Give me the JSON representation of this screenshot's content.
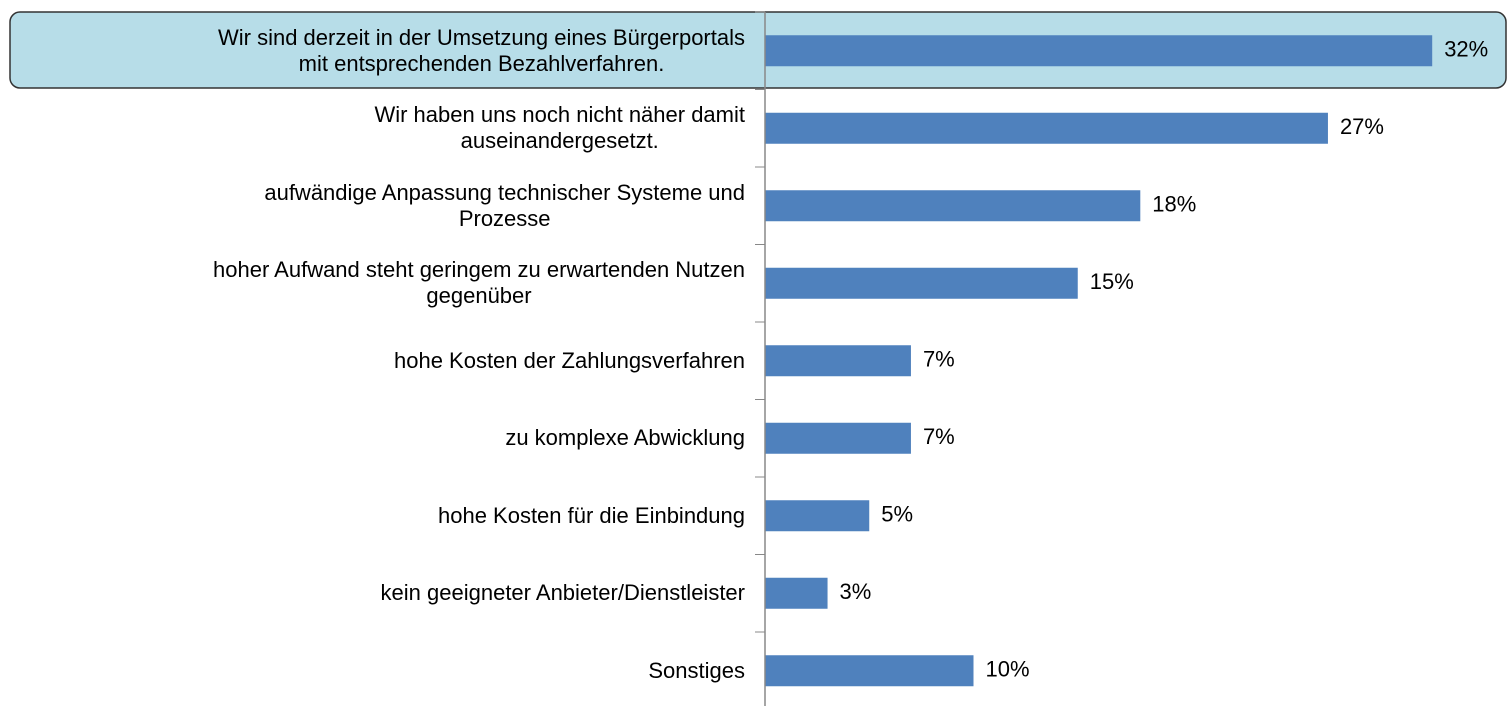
{
  "chart_data": {
    "type": "bar",
    "orientation": "horizontal",
    "color": "#4f81bd",
    "categories": [
      "Wir sind derzeit in der Umsetzung eines Bürgerportals\nmit entsprechenden Bezahlverfahren.",
      "Wir haben uns noch nicht näher damit\nauseinandergesetzt.",
      "aufwändige Anpassung technischer Systeme und\nProzesse",
      "hoher Aufwand steht geringem zu erwartenden Nutzen\ngegenüber",
      "hohe Kosten der Zahlungsverfahren",
      "zu komplexe Abwicklung",
      "hohe Kosten für die Einbindung",
      "kein geeigneter Anbieter/Dienstleister",
      "Sonstiges"
    ],
    "values": [
      32,
      27,
      18,
      15,
      7,
      7,
      5,
      3,
      10
    ],
    "value_labels": [
      "32%",
      "27%",
      "18%",
      "15%",
      "7%",
      "7%",
      "5%",
      "3%",
      "10%"
    ]
  }
}
